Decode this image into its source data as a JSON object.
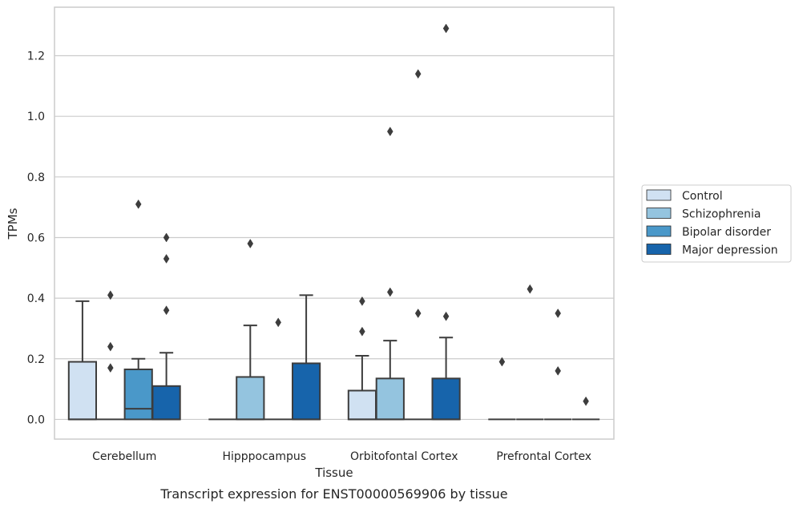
{
  "caption": "Transcript expression for ENST00000569906 by tissue",
  "chart_data": {
    "type": "boxplot",
    "xlabel": "Tissue",
    "ylabel": "TPMs",
    "ylim": [
      -0.065,
      1.36
    ],
    "yticks": [
      "0.0",
      "0.2",
      "0.4",
      "0.6",
      "0.8",
      "1.0",
      "1.2"
    ],
    "grid": "horizontal",
    "legend_position": "right",
    "categories": [
      "Cerebellum",
      "Hipppocampus",
      "Orbitofontal Cortex",
      "Prefrontal Cortex"
    ],
    "series": [
      {
        "name": "Control",
        "color": "#d0e1f2",
        "stats": [
          {
            "q1": 0,
            "median": 0,
            "q3": 0.19,
            "whisker_low": 0,
            "whisker_high": 0.39,
            "outliers": []
          },
          {
            "q1": 0,
            "median": 0,
            "q3": 0,
            "whisker_low": 0,
            "whisker_high": 0,
            "outliers": []
          },
          {
            "q1": 0,
            "median": 0,
            "q3": 0.095,
            "whisker_low": 0,
            "whisker_high": 0.21,
            "outliers": [
              0.39,
              0.29
            ]
          },
          {
            "q1": 0,
            "median": 0,
            "q3": 0,
            "whisker_low": 0,
            "whisker_high": 0,
            "outliers": [
              0.19
            ]
          }
        ]
      },
      {
        "name": "Schizophrenia",
        "color": "#94c4df",
        "stats": [
          {
            "q1": 0,
            "median": 0,
            "q3": 0,
            "whisker_low": 0,
            "whisker_high": 0,
            "outliers": [
              0.41,
              0.24,
              0.17
            ]
          },
          {
            "q1": 0,
            "median": 0,
            "q3": 0.14,
            "whisker_low": 0,
            "whisker_high": 0.31,
            "outliers": [
              0.58
            ]
          },
          {
            "q1": 0,
            "median": 0,
            "q3": 0.135,
            "whisker_low": 0,
            "whisker_high": 0.26,
            "outliers": [
              0.95,
              0.42
            ]
          },
          {
            "q1": 0,
            "median": 0,
            "q3": 0,
            "whisker_low": 0,
            "whisker_high": 0,
            "outliers": [
              0.43
            ]
          }
        ]
      },
      {
        "name": "Bipolar disorder",
        "color": "#4a98c9",
        "stats": [
          {
            "q1": 0,
            "median": 0.035,
            "q3": 0.165,
            "whisker_low": 0,
            "whisker_high": 0.2,
            "outliers": [
              0.71
            ]
          },
          {
            "q1": 0,
            "median": 0,
            "q3": 0,
            "whisker_low": 0,
            "whisker_high": 0,
            "outliers": [
              0.32
            ]
          },
          {
            "q1": 0,
            "median": 0,
            "q3": 0,
            "whisker_low": 0,
            "whisker_high": 0,
            "outliers": [
              1.14,
              0.35
            ]
          },
          {
            "q1": 0,
            "median": 0,
            "q3": 0,
            "whisker_low": 0,
            "whisker_high": 0,
            "outliers": [
              0.35,
              0.16
            ]
          }
        ]
      },
      {
        "name": "Major depression",
        "color": "#1764ab",
        "stats": [
          {
            "q1": 0,
            "median": 0,
            "q3": 0.11,
            "whisker_low": 0,
            "whisker_high": 0.22,
            "outliers": [
              0.6,
              0.53,
              0.36
            ]
          },
          {
            "q1": 0,
            "median": 0,
            "q3": 0.185,
            "whisker_low": 0,
            "whisker_high": 0.41,
            "outliers": []
          },
          {
            "q1": 0,
            "median": 0,
            "q3": 0.135,
            "whisker_low": 0,
            "whisker_high": 0.27,
            "outliers": [
              1.29,
              0.34
            ]
          },
          {
            "q1": 0,
            "median": 0,
            "q3": 0,
            "whisker_low": 0,
            "whisker_high": 0,
            "outliers": [
              0.06
            ]
          }
        ]
      }
    ]
  }
}
